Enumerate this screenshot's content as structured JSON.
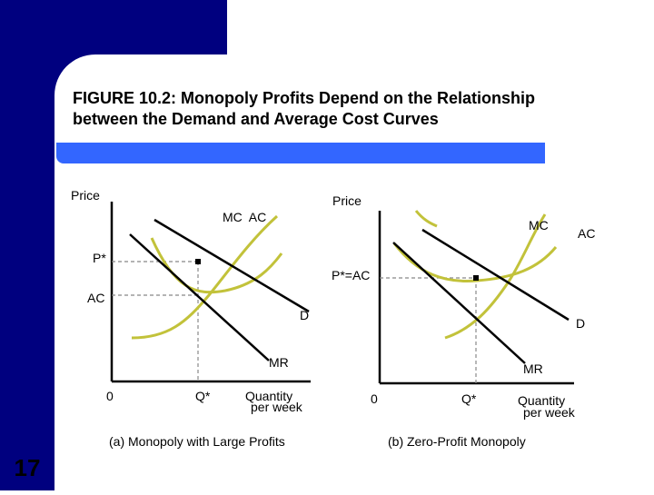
{
  "slide": {
    "title_line1": "FIGURE 10.2: Monopoly Profits Depend on the Relationship",
    "title_line2": "between the Demand and Average Cost Curves",
    "slide_number": "17",
    "colors": {
      "navy": "#00007F",
      "blue_bar": "#3366FF",
      "cost_curve": "#C2C23A",
      "demand_curve": "#000000",
      "guide": "#888888"
    }
  },
  "panel_a": {
    "price_label": "Price",
    "mc_ac_label": "MC  AC",
    "p_star": "P*",
    "ac": "AC",
    "d": "D",
    "mr": "MR",
    "zero": "0",
    "q_star": "Q*",
    "quantity": "Quantity",
    "per_week": "per week",
    "caption": "(a) Monopoly with Large Profits"
  },
  "panel_b": {
    "price_label": "Price",
    "mc": "MC",
    "ac": "AC",
    "p_star_ac": "P*=AC",
    "d": "D",
    "mr": "MR",
    "zero": "0",
    "q_star": "Q*",
    "quantity": "Quantity",
    "per_week": "per week",
    "caption": "(b) Zero-Profit Monopoly"
  }
}
